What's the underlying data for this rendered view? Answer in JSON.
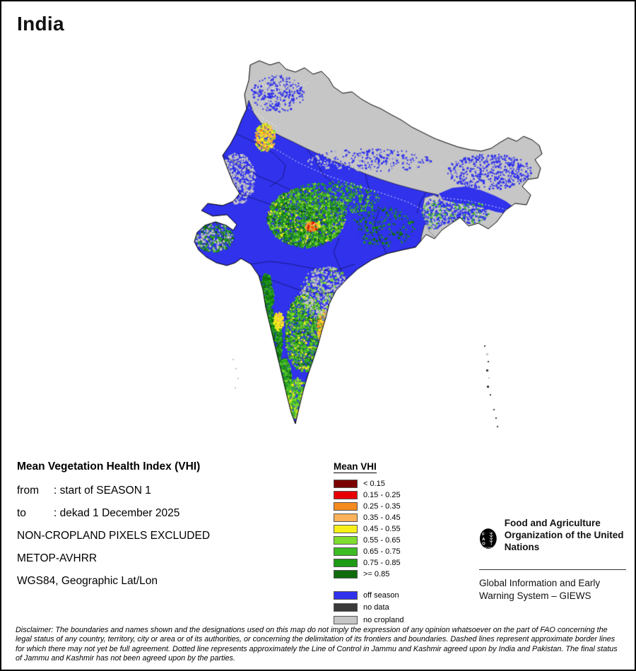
{
  "page": {
    "title": "India"
  },
  "map": {
    "colors": {
      "off_season": "#3032ec",
      "no_data": "#3a3a3a",
      "no_cropland": "#c6c6c6",
      "vhi1": "#7a0000",
      "vhi2": "#e80000",
      "vhi3": "#f58a1d",
      "vhi4": "#fbb25a",
      "vhi5": "#f7ef1a",
      "vhi6": "#7fdd2f",
      "vhi7": "#3cbb22",
      "vhi8": "#1e9a14",
      "vhi9": "#0f6b0c",
      "outline": "#000000"
    }
  },
  "info": {
    "heading": "Mean Vegetation Health Index (VHI)",
    "period": [
      {
        "label": "from",
        "value": ": start of SEASON 1"
      },
      {
        "label": "to",
        "value": ": dekad 1 December 2025"
      }
    ],
    "notes": [
      "NON-CROPLAND PIXELS EXCLUDED",
      "METOP-AVHRR",
      "WGS84, Geographic Lat/Lon"
    ]
  },
  "legend": {
    "title": "Mean VHI",
    "items": [
      {
        "label": "< 0.15",
        "color": "#7a0000"
      },
      {
        "label": "0.15 - 0.25",
        "color": "#e80000"
      },
      {
        "label": "0.25 - 0.35",
        "color": "#f58a1d"
      },
      {
        "label": "0.35 - 0.45",
        "color": "#fbb25a"
      },
      {
        "label": "0.45 - 0.55",
        "color": "#f7ef1a"
      },
      {
        "label": "0.55 - 0.65",
        "color": "#7fdd2f"
      },
      {
        "label": "0.65 - 0.75",
        "color": "#3cbb22"
      },
      {
        "label": "0.75 - 0.85",
        "color": "#1e9a14"
      },
      {
        "label": ">= 0.85",
        "color": "#0f6b0c"
      }
    ],
    "extra": [
      {
        "label": "off season",
        "color": "#3032ec"
      },
      {
        "label": "no data",
        "color": "#3a3a3a"
      },
      {
        "label": "no cropland",
        "color": "#c6c6c6"
      }
    ]
  },
  "org": {
    "logo_letters": [
      "F",
      "A",
      "O"
    ],
    "logo_motto": "FIAT PANIS",
    "fao_name": "Food and Agriculture Organization of the United Nations",
    "giews_name": "Global Information and Early Warning System – GIEWS"
  },
  "disclaimer": "Disclaimer: The boundaries and names shown and the designations used on this map do not imply the expression of any opinion whatsoever on the part of FAO concerning the legal status of any country, territory, city or area or of its authorities, or concerning the delimitation of its frontiers and boundaries. Dashed lines represent approximate border lines for which there may not yet be full agreement. Dotted line represents approximately the Line of Control in Jammu and Kashmir agreed upon by India and Pakistan. The final status of Jammu and Kashmir has not been agreed upon by the parties."
}
